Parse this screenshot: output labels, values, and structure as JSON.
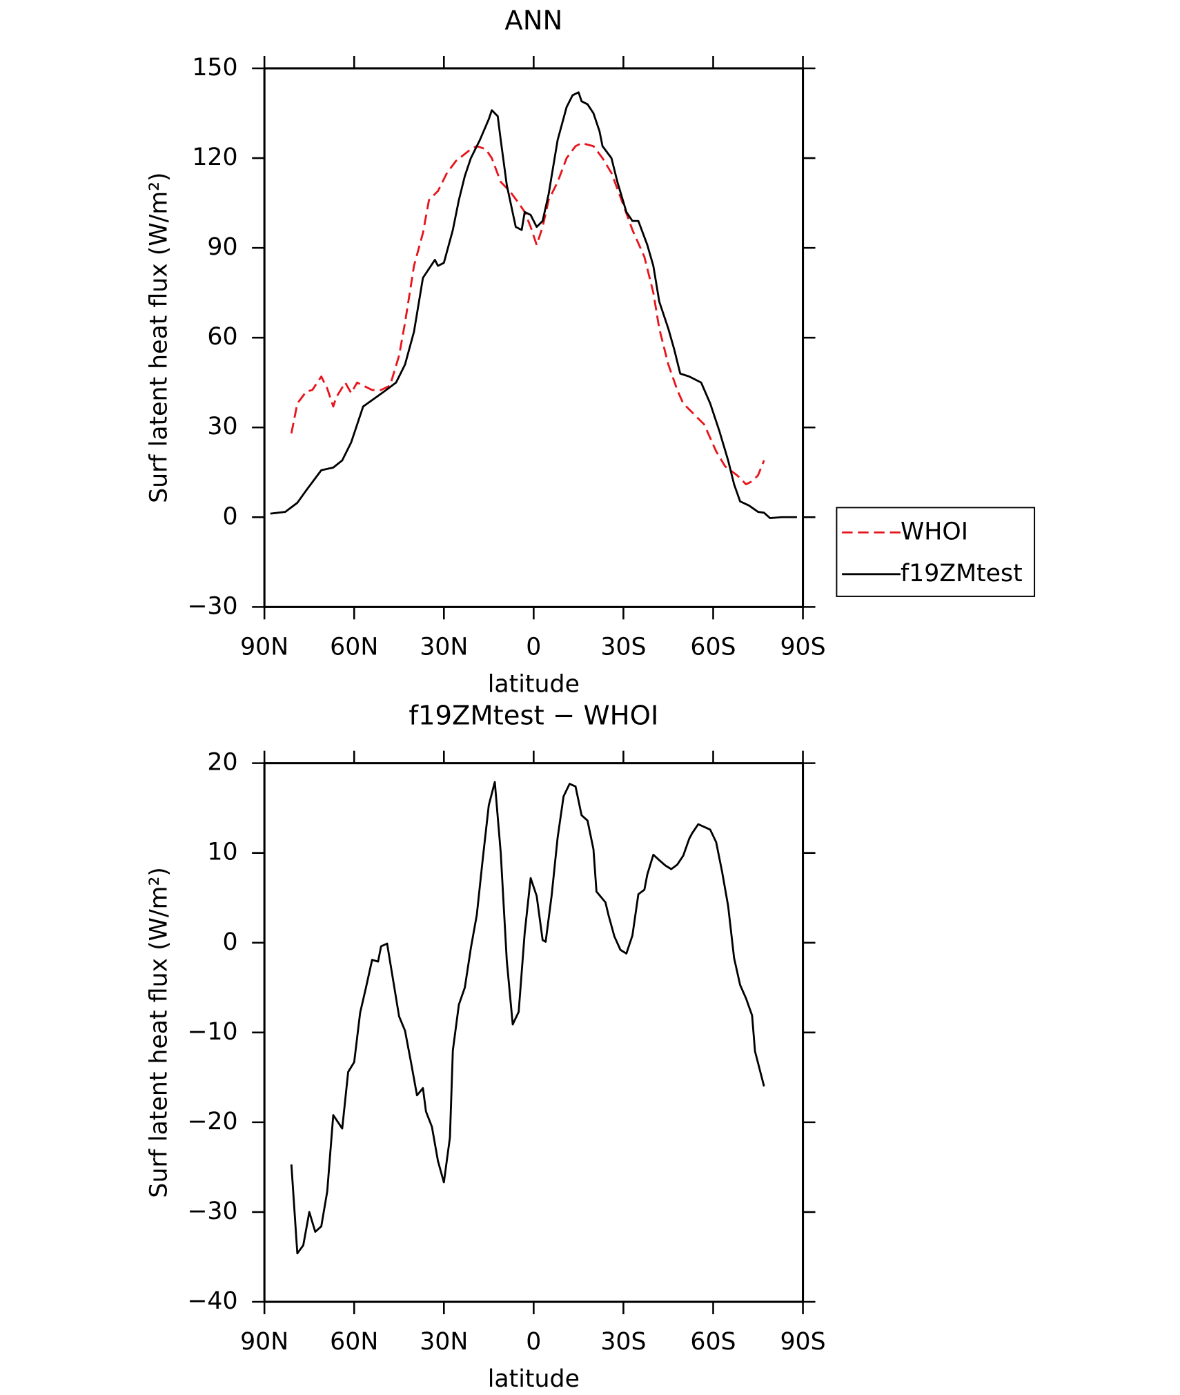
{
  "chart_data": [
    {
      "type": "line",
      "title": "ANN",
      "x_label": "latitude",
      "y_label": "Surf latent heat flux (W/m²)",
      "xlim": [
        90,
        -90
      ],
      "ylim": [
        -30,
        150
      ],
      "xticks": [
        {
          "value": 90,
          "label": "90N"
        },
        {
          "value": 60,
          "label": "60N"
        },
        {
          "value": 30,
          "label": "30N"
        },
        0,
        {
          "value": -30,
          "label": "30S"
        },
        {
          "value": -60,
          "label": "60S"
        },
        {
          "value": -90,
          "label": "90S"
        }
      ],
      "yticks": [
        {
          "value": -30,
          "label": "−30"
        },
        0,
        30,
        60,
        90,
        120,
        150
      ],
      "legend": "right",
      "series": [
        {
          "name": "WHOI",
          "color": "#e8141b",
          "dash": true,
          "x": [
            81,
            79,
            76,
            74,
            71,
            69,
            67,
            66,
            63,
            61,
            59,
            57,
            54,
            51,
            48,
            45,
            43,
            40,
            37,
            35,
            32,
            29,
            26,
            21,
            19,
            16,
            14,
            11,
            8,
            5,
            3,
            1,
            -1,
            -3,
            -5,
            -8,
            -11,
            -14,
            -16,
            -20,
            -23,
            -26,
            -29,
            -33,
            -37,
            -40,
            -42,
            -45,
            -48,
            -50,
            -53,
            -57,
            -61,
            -64,
            -68,
            -71,
            -73,
            -75,
            -77
          ],
          "values": [
            28,
            38,
            42,
            42.5,
            47,
            43,
            37,
            40,
            45,
            41.5,
            45,
            44,
            42.5,
            42.5,
            44,
            54,
            65,
            84,
            95,
            106,
            109,
            115,
            119,
            123,
            124,
            123,
            120,
            112,
            109,
            105,
            102,
            97,
            91,
            97,
            106,
            112,
            120,
            124,
            125,
            124,
            120,
            115,
            107,
            96,
            87,
            75,
            63,
            51,
            42.5,
            38,
            35,
            31,
            22,
            17,
            14,
            11,
            12,
            14,
            19
          ]
        },
        {
          "name": "f19ZMtest",
          "color": "#000000",
          "dash": false,
          "x": [
            88,
            83,
            79,
            76,
            71,
            67,
            64,
            61,
            57,
            50,
            46,
            43,
            40,
            37,
            33,
            32,
            30,
            27,
            25,
            23,
            21,
            18,
            15,
            14,
            12,
            11,
            9,
            6,
            4,
            3,
            1,
            -1,
            -3,
            -5,
            -8,
            -11,
            -13,
            -15,
            -16,
            -18,
            -20,
            -22,
            -23,
            -26,
            -28,
            -31,
            -33,
            -35,
            -38,
            -40,
            -42,
            -45,
            -47,
            -49,
            -52,
            -56,
            -59,
            -62,
            -65,
            -67,
            -69,
            -72,
            -75,
            -77,
            -79,
            -83,
            -88
          ],
          "values": [
            1.2,
            1.8,
            4.8,
            9,
            15.7,
            16.6,
            19,
            25,
            37,
            42,
            45,
            51,
            62,
            80,
            86,
            84,
            85,
            96,
            106,
            114,
            120,
            126,
            133,
            136,
            134,
            126,
            111,
            97,
            96,
            102,
            101,
            97,
            99,
            108,
            126,
            137,
            141,
            142,
            139,
            138,
            135,
            129,
            124,
            120,
            112,
            102,
            99,
            99,
            91,
            84,
            72,
            63,
            56,
            48,
            47,
            45,
            38,
            29,
            19,
            11,
            5.3,
            3.9,
            1.8,
            1.5,
            -0.3,
            0,
            0
          ]
        }
      ]
    },
    {
      "type": "line",
      "title": "f19ZMtest − WHOI",
      "x_label": "latitude",
      "y_label": "Surf latent heat flux (W/m²)",
      "xlim": [
        90,
        -90
      ],
      "ylim": [
        -40,
        20
      ],
      "xticks": [
        {
          "value": 90,
          "label": "90N"
        },
        {
          "value": 60,
          "label": "60N"
        },
        {
          "value": 30,
          "label": "30N"
        },
        0,
        {
          "value": -30,
          "label": "30S"
        },
        {
          "value": -60,
          "label": "60S"
        },
        {
          "value": -90,
          "label": "90S"
        }
      ],
      "yticks": [
        {
          "value": -40,
          "label": "−40"
        },
        {
          "value": -30,
          "label": "−30"
        },
        {
          "value": -20,
          "label": "−20"
        },
        {
          "value": -10,
          "label": "−10"
        },
        0,
        10,
        20
      ],
      "series": [
        {
          "color": "#000000",
          "dash": false,
          "x": [
            81,
            79,
            77,
            75,
            73,
            71,
            69,
            67,
            64,
            62,
            60,
            58,
            56,
            54,
            52,
            51,
            49,
            45,
            43,
            41,
            39,
            37,
            36,
            34,
            32,
            30,
            28,
            27,
            25,
            23,
            21,
            19,
            17,
            15,
            13,
            11,
            9,
            7,
            5,
            3,
            1,
            -1,
            -3,
            -4,
            -6,
            -8,
            -10,
            -12,
            -14,
            -16,
            -18,
            -20,
            -21,
            -24,
            -25,
            -27,
            -29,
            -31,
            -33,
            -35,
            -37,
            -38,
            -40,
            -42,
            -44,
            -46,
            -48,
            -50,
            -52,
            -53,
            -55,
            -57,
            -59,
            -61,
            -63,
            -65,
            -67,
            -69,
            -71,
            -73,
            -74,
            -77
          ],
          "values": [
            -24.7,
            -34.6,
            -33.7,
            -30,
            -32.2,
            -31.6,
            -27.7,
            -19.2,
            -20.7,
            -14.4,
            -13.3,
            -7.8,
            -4.9,
            -1.9,
            -2.1,
            -0.4,
            -0.1,
            -8.2,
            -9.8,
            -13.3,
            -17,
            -16.2,
            -18.8,
            -20.5,
            -24.3,
            -26.7,
            -21.7,
            -12,
            -6.9,
            -5,
            -0.6,
            3.1,
            9.4,
            15.3,
            17.9,
            10,
            -2,
            -9.1,
            -7.7,
            1.1,
            7.2,
            5.2,
            0.3,
            0.1,
            5.2,
            11.7,
            16.3,
            17.7,
            17.4,
            14.2,
            13.6,
            10.4,
            5.7,
            4.5,
            3.1,
            0.7,
            -0.8,
            -1.2,
            0.8,
            5.4,
            5.9,
            7.6,
            9.8,
            9.2,
            8.6,
            8.2,
            8.7,
            9.7,
            11.6,
            12.2,
            13.2,
            12.9,
            12.6,
            11.2,
            7.9,
            4.1,
            -1.7,
            -4.7,
            -6.2,
            -8.1,
            -12.1,
            -16
          ]
        }
      ]
    }
  ]
}
